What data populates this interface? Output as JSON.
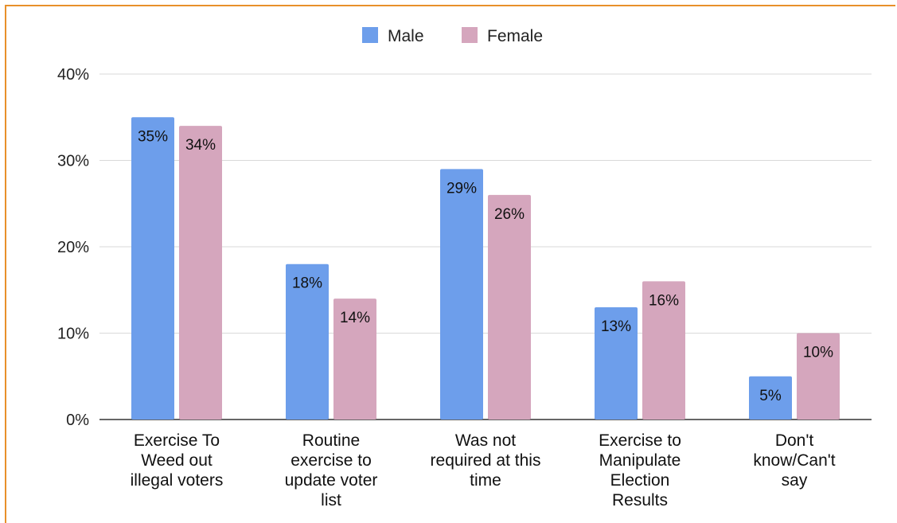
{
  "chart_data": {
    "type": "bar",
    "categories": [
      [
        "Exercise To",
        "Weed out",
        "illegal voters"
      ],
      [
        "Routine",
        "exercise to",
        "update voter",
        "list"
      ],
      [
        "Was not",
        "required at this",
        "time"
      ],
      [
        "Exercise to",
        "Manipulate",
        "Election",
        "Results"
      ],
      [
        "Don't",
        "know/Can't",
        "say"
      ]
    ],
    "series": [
      {
        "name": "Male",
        "color": "#6d9eeb",
        "values": [
          35,
          18,
          29,
          13,
          5
        ],
        "labels": [
          "35%",
          "18%",
          "29%",
          "13%",
          "5%"
        ]
      },
      {
        "name": "Female",
        "color": "#d5a6bd",
        "values": [
          34,
          14,
          26,
          16,
          10
        ],
        "labels": [
          "34%",
          "14%",
          "26%",
          "16%",
          "10%"
        ]
      }
    ],
    "y_ticks": [
      {
        "value": 0,
        "label": "0%"
      },
      {
        "value": 10,
        "label": "10%"
      },
      {
        "value": 20,
        "label": "20%"
      },
      {
        "value": 30,
        "label": "30%"
      },
      {
        "value": 40,
        "label": "40%"
      }
    ],
    "ylim": [
      0,
      40
    ],
    "grid": true,
    "legend": "top-center",
    "colors": {
      "grid": "#d9d9d9",
      "axis": "#333333",
      "frame": "#e8902a"
    }
  }
}
